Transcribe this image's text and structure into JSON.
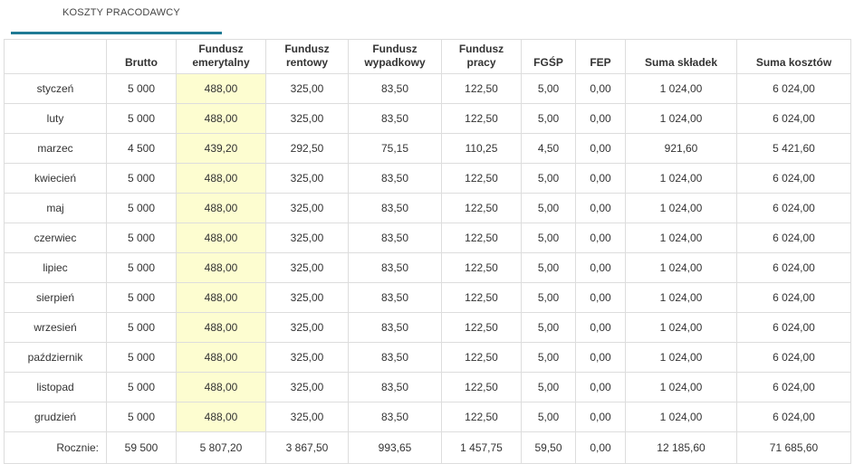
{
  "tab": {
    "label": "KOSZTY PRACODAWCY"
  },
  "table": {
    "headers": [
      "",
      "Brutto",
      "Fundusz emerytalny",
      "Fundusz rentowy",
      "Fundusz wypadkowy",
      "Fundusz pracy",
      "FGŚP",
      "FEP",
      "Suma składek",
      "Suma kosztów"
    ],
    "header_lines": [
      [
        ""
      ],
      [
        "Brutto"
      ],
      [
        "Fundusz",
        "emerytalny"
      ],
      [
        "Fundusz",
        "rentowy"
      ],
      [
        "Fundusz",
        "wypadkowy"
      ],
      [
        "Fundusz",
        "pracy"
      ],
      [
        "FGŚP"
      ],
      [
        "FEP"
      ],
      [
        "Suma składek"
      ],
      [
        "Suma kosztów"
      ]
    ],
    "rows": [
      [
        "styczeń",
        "5 000",
        "488,00",
        "325,00",
        "83,50",
        "122,50",
        "5,00",
        "0,00",
        "1 024,00",
        "6 024,00"
      ],
      [
        "luty",
        "5 000",
        "488,00",
        "325,00",
        "83,50",
        "122,50",
        "5,00",
        "0,00",
        "1 024,00",
        "6 024,00"
      ],
      [
        "marzec",
        "4 500",
        "439,20",
        "292,50",
        "75,15",
        "110,25",
        "4,50",
        "0,00",
        "921,60",
        "5 421,60"
      ],
      [
        "kwiecień",
        "5 000",
        "488,00",
        "325,00",
        "83,50",
        "122,50",
        "5,00",
        "0,00",
        "1 024,00",
        "6 024,00"
      ],
      [
        "maj",
        "5 000",
        "488,00",
        "325,00",
        "83,50",
        "122,50",
        "5,00",
        "0,00",
        "1 024,00",
        "6 024,00"
      ],
      [
        "czerwiec",
        "5 000",
        "488,00",
        "325,00",
        "83,50",
        "122,50",
        "5,00",
        "0,00",
        "1 024,00",
        "6 024,00"
      ],
      [
        "lipiec",
        "5 000",
        "488,00",
        "325,00",
        "83,50",
        "122,50",
        "5,00",
        "0,00",
        "1 024,00",
        "6 024,00"
      ],
      [
        "sierpień",
        "5 000",
        "488,00",
        "325,00",
        "83,50",
        "122,50",
        "5,00",
        "0,00",
        "1 024,00",
        "6 024,00"
      ],
      [
        "wrzesień",
        "5 000",
        "488,00",
        "325,00",
        "83,50",
        "122,50",
        "5,00",
        "0,00",
        "1 024,00",
        "6 024,00"
      ],
      [
        "październik",
        "5 000",
        "488,00",
        "325,00",
        "83,50",
        "122,50",
        "5,00",
        "0,00",
        "1 024,00",
        "6 024,00"
      ],
      [
        "listopad",
        "5 000",
        "488,00",
        "325,00",
        "83,50",
        "122,50",
        "5,00",
        "0,00",
        "1 024,00",
        "6 024,00"
      ],
      [
        "grudzień",
        "5 000",
        "488,00",
        "325,00",
        "83,50",
        "122,50",
        "5,00",
        "0,00",
        "1 024,00",
        "6 024,00"
      ]
    ],
    "total_row": [
      "Rocznie:",
      "59 500",
      "5 807,20",
      "3 867,50",
      "993,65",
      "1 457,75",
      "59,50",
      "0,00",
      "12 185,60",
      "71 685,60"
    ],
    "highlight_color": "#fdfdd0",
    "accent_color": "#1f7a94"
  }
}
